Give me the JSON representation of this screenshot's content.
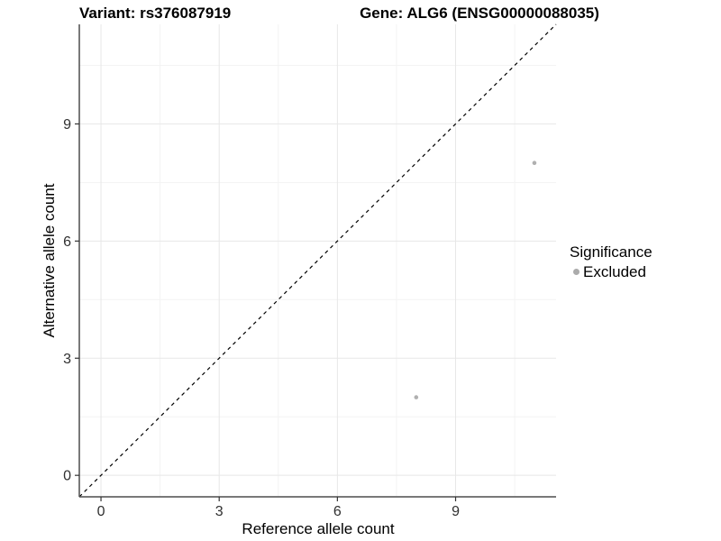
{
  "titles": {
    "variant": "Variant: rs376087919",
    "gene": "Gene: ALG6 (ENSG00000088035)"
  },
  "legend": {
    "title": "Significance",
    "items": [
      {
        "label": "Excluded",
        "color": "#ababab"
      }
    ]
  },
  "colors": {
    "grid_major": "#e7e7e7",
    "grid_minor": "#f3f3f3",
    "axis_line": "#4d4d4d",
    "tick_mark": "#333333",
    "tick_label": "#303030",
    "point": "#b0b0b0",
    "identity_line": "#000000",
    "background": "#ffffff"
  },
  "chart_data": {
    "type": "scatter",
    "title": "Variant: rs376087919 — Gene: ALG6 (ENSG00000088035)",
    "xlabel": "Reference allele count",
    "ylabel": "Alternative allele count",
    "xlim": [
      -0.55,
      11.55
    ],
    "ylim": [
      -0.55,
      11.55
    ],
    "xticks": [
      0,
      3,
      6,
      9
    ],
    "yticks": [
      0,
      3,
      6,
      9
    ],
    "xticks_minor": [
      1.5,
      4.5,
      7.5,
      10.5
    ],
    "yticks_minor": [
      1.5,
      4.5,
      7.5,
      10.5
    ],
    "grid": true,
    "legend_position": "right",
    "identity_line": {
      "style": "dashed",
      "slope": 1,
      "intercept": 0
    },
    "series": [
      {
        "name": "Excluded",
        "color": "#b0b0b0",
        "points": [
          {
            "x": 8,
            "y": 2
          },
          {
            "x": 11,
            "y": 8
          }
        ]
      }
    ]
  }
}
